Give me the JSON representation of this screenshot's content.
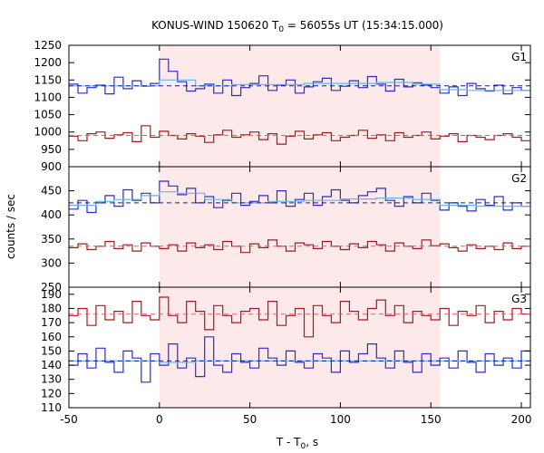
{
  "title": {
    "prefix": "KONUS-WIND 150620 T",
    "sub": "0",
    "suffix": " = 56055s UT (15:34:15.000)"
  },
  "xlabel": {
    "prefix": "T - T",
    "sub": "0",
    "suffix": ", s"
  },
  "ylabel": "counts / sec",
  "chart_data": [
    {
      "type": "line",
      "panel": "G1",
      "xlim": [
        -50,
        205
      ],
      "ylim": [
        900,
        1250
      ],
      "x_ticks": [
        -50,
        0,
        50,
        100,
        150,
        200
      ],
      "y_ticks": [
        900,
        950,
        1000,
        1050,
        1100,
        1150,
        1200,
        1250
      ],
      "highlight_interval": [
        0,
        155
      ],
      "series": [
        {
          "color": "#2b2bd0",
          "style": "step",
          "x": [
            -50,
            -45,
            -40,
            -35,
            -30,
            -25,
            -20,
            -15,
            -10,
            -5,
            0,
            5,
            10,
            15,
            20,
            25,
            30,
            35,
            40,
            45,
            50,
            55,
            60,
            65,
            70,
            75,
            80,
            85,
            90,
            95,
            100,
            105,
            110,
            115,
            120,
            125,
            130,
            135,
            140,
            145,
            150,
            155,
            160,
            165,
            170,
            175,
            180,
            185,
            190,
            195,
            200
          ],
          "y": [
            1138,
            1112,
            1128,
            1135,
            1110,
            1158,
            1125,
            1148,
            1132,
            1140,
            1210,
            1175,
            1145,
            1118,
            1125,
            1138,
            1112,
            1150,
            1105,
            1128,
            1140,
            1162,
            1120,
            1135,
            1150,
            1112,
            1130,
            1145,
            1155,
            1120,
            1132,
            1148,
            1128,
            1160,
            1138,
            1118,
            1152,
            1130,
            1142,
            1135,
            1128,
            1112,
            1130,
            1105,
            1140,
            1125,
            1118,
            1135,
            1110,
            1128,
            1120
          ]
        },
        {
          "color": "#5eb8e8",
          "style": "step",
          "x": [
            -50,
            -40,
            0,
            20,
            40,
            60,
            80,
            100,
            120,
            140,
            155,
            170,
            205
          ],
          "y": [
            1133,
            1133,
            1150,
            1133,
            1137,
            1137,
            1140,
            1140,
            1143,
            1138,
            1122,
            1120,
            1120
          ]
        },
        {
          "color": "#1a1a8a",
          "style": "dash",
          "x": [
            -50,
            205
          ],
          "y": [
            1133,
            1133
          ]
        },
        {
          "color": "#a81818",
          "style": "step",
          "x": [
            -50,
            -45,
            -40,
            -35,
            -30,
            -25,
            -20,
            -15,
            -10,
            -5,
            0,
            5,
            10,
            15,
            20,
            25,
            30,
            35,
            40,
            45,
            50,
            55,
            60,
            65,
            70,
            75,
            80,
            85,
            90,
            95,
            100,
            105,
            110,
            115,
            120,
            125,
            130,
            135,
            140,
            145,
            150,
            155,
            160,
            165,
            170,
            175,
            180,
            185,
            190,
            195,
            200
          ],
          "y": [
            988,
            975,
            995,
            1000,
            982,
            992,
            998,
            972,
            1018,
            985,
            1002,
            990,
            980,
            995,
            988,
            970,
            992,
            1005,
            985,
            992,
            1000,
            978,
            995,
            965,
            988,
            1002,
            980,
            992,
            998,
            975,
            985,
            990,
            1005,
            982,
            992,
            975,
            998,
            985,
            990,
            1000,
            980,
            988,
            995,
            972,
            990,
            985,
            978,
            990,
            995,
            985,
            975
          ]
        },
        {
          "color": "#e06060",
          "style": "dash",
          "x": [
            -50,
            205
          ],
          "y": [
            990,
            990
          ]
        }
      ]
    },
    {
      "type": "line",
      "panel": "G2",
      "xlim": [
        -50,
        205
      ],
      "ylim": [
        250,
        500
      ],
      "x_ticks": [
        -50,
        0,
        50,
        100,
        150,
        200
      ],
      "y_ticks": [
        250,
        300,
        350,
        400,
        450
      ],
      "highlight_interval": [
        0,
        155
      ],
      "series": [
        {
          "color": "#2b2bd0",
          "style": "step",
          "x": [
            -50,
            -45,
            -40,
            -35,
            -30,
            -25,
            -20,
            -15,
            -10,
            -5,
            0,
            5,
            10,
            15,
            20,
            25,
            30,
            35,
            40,
            45,
            50,
            55,
            60,
            65,
            70,
            75,
            80,
            85,
            90,
            95,
            100,
            105,
            110,
            115,
            120,
            125,
            130,
            135,
            140,
            145,
            150,
            155,
            160,
            165,
            170,
            175,
            180,
            185,
            190,
            195,
            200
          ],
          "y": [
            412,
            430,
            405,
            425,
            440,
            418,
            452,
            430,
            445,
            425,
            470,
            460,
            442,
            455,
            425,
            438,
            415,
            430,
            445,
            420,
            428,
            440,
            425,
            450,
            418,
            432,
            445,
            420,
            438,
            452,
            430,
            425,
            440,
            448,
            455,
            430,
            418,
            438,
            425,
            445,
            430,
            410,
            425,
            418,
            408,
            432,
            420,
            438,
            410,
            425,
            418
          ]
        },
        {
          "color": "#5eb8e8",
          "style": "step",
          "x": [
            -50,
            -35,
            -25,
            -10,
            0,
            10,
            25,
            40,
            60,
            80,
            100,
            120,
            140,
            155,
            175,
            205
          ],
          "y": [
            420,
            428,
            432,
            440,
            448,
            445,
            432,
            425,
            428,
            430,
            433,
            435,
            432,
            420,
            418,
            418
          ]
        },
        {
          "color": "#1a1a8a",
          "style": "dash",
          "x": [
            -50,
            205
          ],
          "y": [
            425,
            425
          ]
        },
        {
          "color": "#a81818",
          "style": "step",
          "x": [
            -50,
            -45,
            -40,
            -35,
            -30,
            -25,
            -20,
            -15,
            -10,
            -5,
            0,
            5,
            10,
            15,
            20,
            25,
            30,
            35,
            40,
            45,
            50,
            55,
            60,
            65,
            70,
            75,
            80,
            85,
            90,
            95,
            100,
            105,
            110,
            115,
            120,
            125,
            130,
            135,
            140,
            145,
            150,
            155,
            160,
            165,
            170,
            175,
            180,
            185,
            190,
            195,
            200
          ],
          "y": [
            332,
            340,
            328,
            335,
            345,
            330,
            338,
            325,
            342,
            335,
            330,
            338,
            325,
            342,
            332,
            338,
            328,
            345,
            335,
            322,
            340,
            332,
            348,
            335,
            325,
            342,
            338,
            330,
            345,
            335,
            328,
            340,
            332,
            345,
            338,
            325,
            342,
            335,
            330,
            348,
            336,
            340,
            332,
            325,
            338,
            330,
            335,
            328,
            342,
            330,
            335
          ]
        },
        {
          "color": "#e06060",
          "style": "dash",
          "x": [
            -50,
            205
          ],
          "y": [
            335,
            335
          ]
        }
      ]
    },
    {
      "type": "line",
      "panel": "G3",
      "xlim": [
        -50,
        205
      ],
      "ylim": [
        110,
        195
      ],
      "x_ticks": [
        -50,
        0,
        50,
        100,
        150,
        200
      ],
      "y_ticks": [
        110,
        120,
        130,
        140,
        150,
        160,
        170,
        180,
        190
      ],
      "highlight_interval": [
        0,
        155
      ],
      "series": [
        {
          "color": "#a81818",
          "style": "step",
          "x": [
            -50,
            -45,
            -40,
            -35,
            -30,
            -25,
            -20,
            -15,
            -10,
            -5,
            0,
            5,
            10,
            15,
            20,
            25,
            30,
            35,
            40,
            45,
            50,
            55,
            60,
            65,
            70,
            75,
            80,
            85,
            90,
            95,
            100,
            105,
            110,
            115,
            120,
            125,
            130,
            135,
            140,
            145,
            150,
            155,
            160,
            165,
            170,
            175,
            180,
            185,
            190,
            195,
            200
          ],
          "y": [
            175,
            180,
            168,
            182,
            172,
            178,
            170,
            185,
            175,
            172,
            188,
            175,
            170,
            185,
            178,
            165,
            182,
            175,
            170,
            178,
            180,
            172,
            185,
            168,
            175,
            180,
            160,
            182,
            175,
            170,
            185,
            178,
            172,
            180,
            186,
            175,
            182,
            170,
            178,
            175,
            172,
            180,
            168,
            178,
            175,
            182,
            170,
            178,
            172,
            180,
            176
          ]
        },
        {
          "color": "#e06060",
          "style": "dash",
          "x": [
            -50,
            205
          ],
          "y": [
            176,
            176
          ]
        },
        {
          "color": "#2b2bd0",
          "style": "step",
          "x": [
            -50,
            -45,
            -40,
            -35,
            -30,
            -25,
            -20,
            -15,
            -10,
            -5,
            0,
            5,
            10,
            15,
            20,
            25,
            30,
            35,
            40,
            45,
            50,
            55,
            60,
            65,
            70,
            75,
            80,
            85,
            90,
            95,
            100,
            105,
            110,
            115,
            120,
            125,
            130,
            135,
            140,
            145,
            150,
            155,
            160,
            165,
            170,
            175,
            180,
            185,
            190,
            195,
            200
          ],
          "y": [
            140,
            148,
            138,
            152,
            142,
            135,
            150,
            145,
            128,
            148,
            140,
            155,
            138,
            145,
            132,
            160,
            140,
            135,
            148,
            142,
            138,
            152,
            145,
            140,
            150,
            142,
            138,
            148,
            145,
            135,
            150,
            142,
            148,
            155,
            145,
            138,
            150,
            142,
            135,
            148,
            140,
            145,
            138,
            150,
            142,
            135,
            148,
            140,
            145,
            138,
            150
          ]
        },
        {
          "color": "#5eb8e8",
          "style": "step",
          "x": [
            -50,
            -20,
            0,
            20,
            60,
            100,
            140,
            155,
            205
          ],
          "y": [
            143,
            143,
            142,
            143,
            143,
            143,
            143,
            143,
            143
          ]
        },
        {
          "color": "#1a1a8a",
          "style": "dash",
          "x": [
            -50,
            205
          ],
          "y": [
            143,
            143
          ]
        }
      ]
    }
  ]
}
